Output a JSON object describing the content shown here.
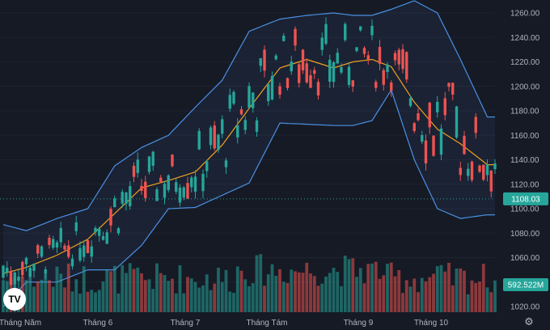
{
  "chart_data": {
    "type": "candlestick",
    "y_ticks": [
      "1260.00",
      "1240.00",
      "1220.00",
      "1200.00",
      "1180.00",
      "1160.00",
      "1140.00",
      "1120.00",
      "1100.00",
      "1080.00",
      "1060.00",
      "1040.00",
      "1020.00"
    ],
    "x_ticks": [
      "Tháng Năm",
      "Tháng 6",
      "Tháng 7",
      "Tháng Tám",
      "Tháng 9",
      "Tháng 10"
    ],
    "ylim": [
      1020,
      1260
    ],
    "last_price": "1108.03",
    "volume_label": "592.522M",
    "colors": {
      "up": "#26a69a",
      "down": "#ef5350",
      "ma": "#f0a020",
      "bands": "#4a90e2",
      "background": "#161a25"
    },
    "anchors": [
      {
        "i": 0,
        "mid": 1047,
        "up": 1087,
        "lo": 1020
      },
      {
        "i": 6,
        "mid": 1052,
        "up": 1082,
        "lo": 1040
      },
      {
        "i": 14,
        "mid": 1062,
        "up": 1092,
        "lo": 1040
      },
      {
        "i": 22,
        "mid": 1075,
        "up": 1100,
        "lo": 1050
      },
      {
        "i": 29,
        "mid": 1096,
        "up": 1135,
        "lo": 1050
      },
      {
        "i": 36,
        "mid": 1117,
        "up": 1150,
        "lo": 1070
      },
      {
        "i": 43,
        "mid": 1123,
        "up": 1160,
        "lo": 1100
      },
      {
        "i": 50,
        "mid": 1130,
        "up": 1183,
        "lo": 1101
      },
      {
        "i": 57,
        "mid": 1152,
        "up": 1205,
        "lo": 1111
      },
      {
        "i": 64,
        "mid": 1182,
        "up": 1245,
        "lo": 1121
      },
      {
        "i": 72,
        "mid": 1215,
        "up": 1255,
        "lo": 1170
      },
      {
        "i": 79,
        "mid": 1222,
        "up": 1258,
        "lo": 1169
      },
      {
        "i": 86,
        "mid": 1215,
        "up": 1260,
        "lo": 1168
      },
      {
        "i": 91,
        "mid": 1220,
        "up": 1258,
        "lo": 1168
      },
      {
        "i": 96,
        "mid": 1222,
        "up": 1258,
        "lo": 1172
      },
      {
        "i": 101,
        "mid": 1216,
        "up": 1263,
        "lo": 1197
      },
      {
        "i": 107,
        "mid": 1187,
        "up": 1270,
        "lo": 1140
      },
      {
        "i": 113,
        "mid": 1165,
        "up": 1260,
        "lo": 1100
      },
      {
        "i": 119,
        "mid": 1153,
        "up": 1222,
        "lo": 1092
      },
      {
        "i": 126,
        "mid": 1136,
        "up": 1175,
        "lo": 1095
      }
    ],
    "moves": [
      1,
      1,
      -1,
      1,
      1,
      -1,
      1,
      1,
      1,
      -1,
      1,
      1,
      -1,
      1,
      1,
      1,
      -1,
      -1,
      1,
      1,
      1,
      1,
      -1,
      1,
      1,
      1,
      1,
      1,
      -1,
      1,
      1,
      1,
      1,
      1,
      -1,
      1,
      -1,
      -1,
      1,
      1,
      1,
      -1,
      1,
      1,
      -1,
      1,
      1,
      1,
      -1,
      1,
      1,
      1,
      1,
      1,
      1,
      -1,
      1,
      1,
      1,
      1,
      1,
      1,
      -1,
      1,
      1,
      1,
      1,
      1,
      -1,
      1,
      1,
      1,
      -1,
      1,
      -1,
      1,
      -1,
      -1,
      -1,
      -1,
      -1,
      -1,
      -1,
      1,
      1,
      1,
      1,
      1,
      1,
      1,
      1,
      -1,
      1,
      1,
      -1,
      -1,
      1,
      -1,
      -1,
      -1,
      1,
      -1,
      -1,
      -1,
      -1,
      -1,
      1,
      -1,
      -1,
      1,
      -1,
      -1,
      -1,
      1,
      1,
      -1,
      -1,
      -1,
      1,
      -1,
      -1,
      1,
      -1,
      -1,
      -1,
      -1,
      1,
      -1,
      1
    ]
  },
  "ui": {
    "logo": "TV",
    "settings_icon": "gear-icon"
  }
}
